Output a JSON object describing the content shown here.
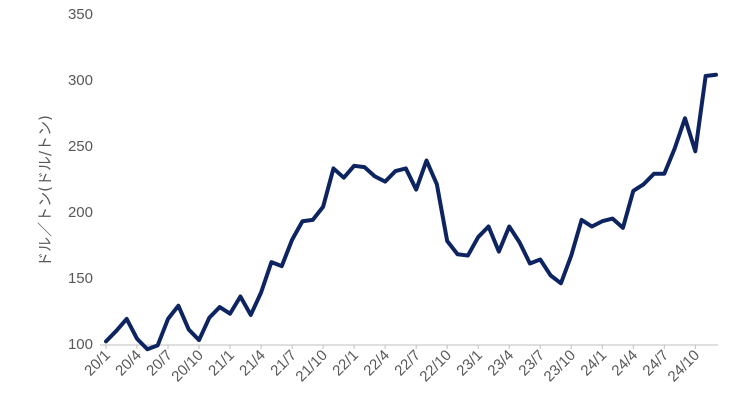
{
  "chart_data": {
    "type": "line",
    "ylabel": "ドル／トン(ドル/トン)",
    "ylim": [
      100,
      350
    ],
    "yticks": [
      100,
      150,
      200,
      250,
      300,
      350
    ],
    "grid": false,
    "legend": "none",
    "colors": {
      "line": "#0d2461",
      "axis": "#bfbfbf",
      "text": "#595959"
    },
    "x_tick_labels": [
      "20/1",
      "20/4",
      "20/7",
      "20/10",
      "21/1",
      "21/4",
      "21/7",
      "21/10",
      "22/1",
      "22/4",
      "22/7",
      "22/10",
      "23/1",
      "23/4",
      "23/7",
      "23/10",
      "24/1",
      "24/4",
      "24/7",
      "24/10"
    ],
    "series": [
      {
        "x": [
          "20/1",
          "20/2",
          "20/3",
          "20/4",
          "20/5",
          "20/6",
          "20/7",
          "20/8",
          "20/9",
          "20/10",
          "20/11",
          "20/12",
          "21/1",
          "21/2",
          "21/3",
          "21/4",
          "21/5",
          "21/6",
          "21/7",
          "21/8",
          "21/9",
          "21/10",
          "21/11",
          "21/12",
          "22/1",
          "22/2",
          "22/3",
          "22/4",
          "22/5",
          "22/6",
          "22/7",
          "22/8",
          "22/9",
          "22/10",
          "22/11",
          "22/12",
          "23/1",
          "23/2",
          "23/3",
          "23/4",
          "23/5",
          "23/6",
          "23/7",
          "23/8",
          "23/9",
          "23/10",
          "23/11",
          "23/12",
          "24/1",
          "24/2",
          "24/3",
          "24/4",
          "24/5",
          "24/6",
          "24/7",
          "24/8",
          "24/9",
          "24/10",
          "24/11",
          "24/12"
        ],
        "values": [
          102,
          110,
          119,
          104,
          96,
          99,
          119,
          129,
          111,
          103,
          120,
          128,
          123,
          136,
          122,
          139,
          162,
          159,
          179,
          193,
          194,
          204,
          233,
          226,
          235,
          234,
          227,
          223,
          231,
          233,
          217,
          239,
          221,
          178,
          168,
          167,
          181,
          189,
          170,
          189,
          177,
          161,
          164,
          152,
          146,
          167,
          194,
          189,
          193,
          195,
          188,
          216,
          221,
          229,
          229,
          248,
          271,
          246,
          303,
          304
        ]
      }
    ]
  }
}
